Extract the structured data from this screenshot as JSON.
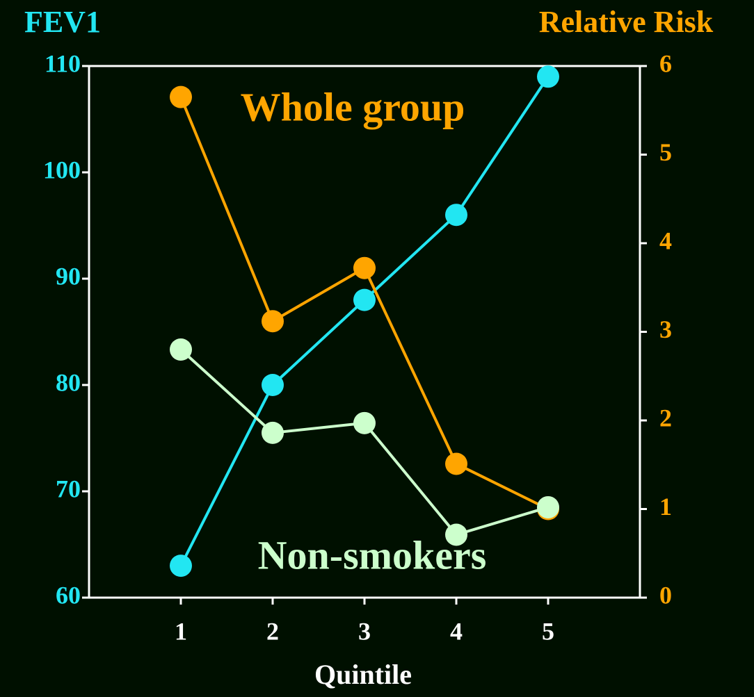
{
  "chart_data": {
    "type": "line",
    "y_label": "FEV1",
    "y2_label": "Relative Risk",
    "x_label": "Quintile",
    "x": [
      1,
      2,
      3,
      4,
      5
    ],
    "xlim": [
      0,
      6
    ],
    "xticks": [
      1,
      2,
      3,
      4,
      5
    ],
    "ylim": [
      60,
      110
    ],
    "yticks": [
      60,
      70,
      80,
      90,
      100,
      110
    ],
    "y2lim": [
      0,
      6
    ],
    "y2ticks": [
      0,
      1,
      2,
      3,
      4,
      5,
      6
    ],
    "y_color": "#22e6f2",
    "y2_color": "#ffa500",
    "series": [
      {
        "color": "#22e6f2",
        "values": [
          63,
          80,
          88,
          96,
          109
        ]
      },
      {
        "name": "Whole group",
        "color": "#ffa500",
        "axis": "y2",
        "values": [
          5.65,
          3.12,
          3.72,
          1.51,
          1.0
        ]
      },
      {
        "name": "Non-smokers",
        "color": "#ccffcc",
        "axis": "y2",
        "values": [
          2.8,
          1.86,
          1.97,
          0.71,
          1.02
        ]
      }
    ]
  }
}
